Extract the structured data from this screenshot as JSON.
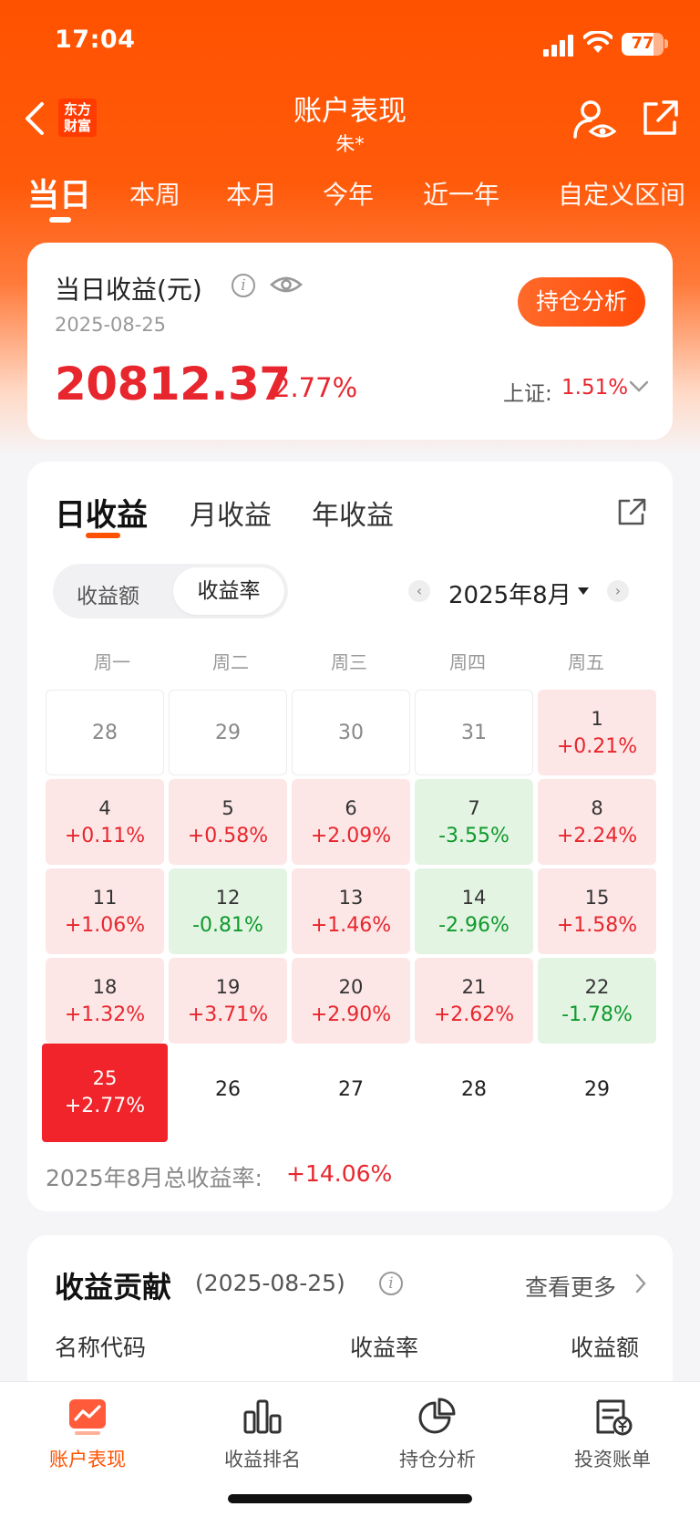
{
  "status_bar": {
    "time": "17:04",
    "battery": "77"
  },
  "header": {
    "logo_line1": "东方",
    "logo_line2": "财富",
    "title": "账户表现",
    "subtitle": "朱*"
  },
  "period_tabs": [
    "当日",
    "本周",
    "本月",
    "今年",
    "近一年",
    "自定义区间"
  ],
  "today_card": {
    "title": "当日收益(元)",
    "date": "2025-08-25",
    "amount": "20812.37",
    "rate": "2.77%",
    "holding_button": "持仓分析",
    "index_label": "上证:",
    "index_value": "1.51%"
  },
  "calendar": {
    "tabs": [
      "日收益",
      "月收益",
      "年收益"
    ],
    "segment": {
      "amount": "收益额",
      "rate": "收益率"
    },
    "month": "2025年8月",
    "weekdays": [
      "周一",
      "周二",
      "周三",
      "周四",
      "周五"
    ],
    "rows": [
      [
        {
          "day": "28",
          "pct": "",
          "type": "empty"
        },
        {
          "day": "29",
          "pct": "",
          "type": "empty"
        },
        {
          "day": "30",
          "pct": "",
          "type": "empty"
        },
        {
          "day": "31",
          "pct": "",
          "type": "empty"
        },
        {
          "day": "1",
          "pct": "+0.21%",
          "type": "up"
        }
      ],
      [
        {
          "day": "4",
          "pct": "+0.11%",
          "type": "up"
        },
        {
          "day": "5",
          "pct": "+0.58%",
          "type": "up"
        },
        {
          "day": "6",
          "pct": "+2.09%",
          "type": "up"
        },
        {
          "day": "7",
          "pct": "-3.55%",
          "type": "down"
        },
        {
          "day": "8",
          "pct": "+2.24%",
          "type": "up"
        }
      ],
      [
        {
          "day": "11",
          "pct": "+1.06%",
          "type": "up"
        },
        {
          "day": "12",
          "pct": "-0.81%",
          "type": "down"
        },
        {
          "day": "13",
          "pct": "+1.46%",
          "type": "up"
        },
        {
          "day": "14",
          "pct": "-2.96%",
          "type": "down"
        },
        {
          "day": "15",
          "pct": "+1.58%",
          "type": "up"
        }
      ],
      [
        {
          "day": "18",
          "pct": "+1.32%",
          "type": "up"
        },
        {
          "day": "19",
          "pct": "+3.71%",
          "type": "up"
        },
        {
          "day": "20",
          "pct": "+2.90%",
          "type": "up"
        },
        {
          "day": "21",
          "pct": "+2.62%",
          "type": "up"
        },
        {
          "day": "22",
          "pct": "-1.78%",
          "type": "down"
        }
      ],
      [
        {
          "day": "25",
          "pct": "+2.77%",
          "type": "today"
        },
        {
          "day": "26",
          "pct": "",
          "type": "future"
        },
        {
          "day": "27",
          "pct": "",
          "type": "future"
        },
        {
          "day": "28",
          "pct": "",
          "type": "future"
        },
        {
          "day": "29",
          "pct": "",
          "type": "future"
        }
      ]
    ],
    "total_label": "2025年8月总收益率:",
    "total_value": "+14.06%",
    "colors": {
      "up": "#e8262e",
      "down": "#0f9a2c",
      "today_bg": "#f0242a"
    }
  },
  "contribution": {
    "title": "收益贡献",
    "date": "(2025-08-25)",
    "more": "查看更多",
    "columns": [
      "名称代码",
      "收益率",
      "收益额"
    ]
  },
  "bottom_nav": [
    "账户表现",
    "收益排名",
    "持仓分析",
    "投资账单"
  ],
  "theme": {
    "brand": "#ff5200",
    "red": "#e8262e"
  }
}
